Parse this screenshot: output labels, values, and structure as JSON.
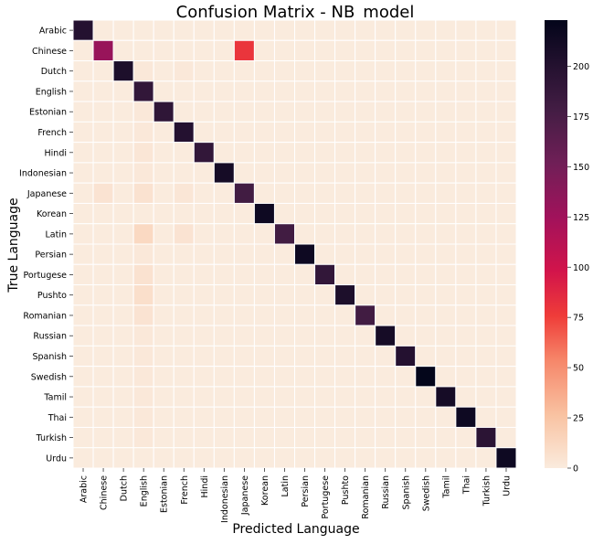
{
  "chart_data": {
    "type": "heatmap",
    "title": "Confusion Matrix - NB_model",
    "xlabel": "Predicted Language",
    "ylabel": "True Language",
    "labels": [
      "Arabic",
      "Chinese",
      "Dutch",
      "English",
      "Estonian",
      "French",
      "Hindi",
      "Indonesian",
      "Japanese",
      "Korean",
      "Latin",
      "Persian",
      "Portugese",
      "Pushto",
      "Romanian",
      "Russian",
      "Spanish",
      "Swedish",
      "Tamil",
      "Thai",
      "Turkish",
      "Urdu"
    ],
    "matrix": [
      [
        200,
        0,
        0,
        0,
        0,
        0,
        0,
        0,
        0,
        0,
        0,
        0,
        0,
        0,
        0,
        0,
        0,
        0,
        0,
        0,
        0,
        0
      ],
      [
        0,
        130,
        0,
        0,
        0,
        0,
        0,
        0,
        80,
        0,
        0,
        0,
        0,
        0,
        0,
        0,
        0,
        0,
        0,
        0,
        0,
        0
      ],
      [
        0,
        0,
        205,
        2,
        0,
        2,
        0,
        0,
        0,
        0,
        0,
        0,
        0,
        0,
        0,
        0,
        0,
        0,
        0,
        0,
        0,
        0
      ],
      [
        0,
        0,
        0,
        190,
        0,
        0,
        0,
        0,
        0,
        0,
        0,
        0,
        0,
        0,
        0,
        0,
        0,
        0,
        0,
        0,
        0,
        0
      ],
      [
        0,
        0,
        0,
        2,
        192,
        0,
        0,
        0,
        0,
        0,
        0,
        0,
        0,
        0,
        0,
        0,
        0,
        0,
        0,
        0,
        0,
        0
      ],
      [
        0,
        0,
        0,
        2,
        0,
        200,
        0,
        0,
        0,
        0,
        0,
        0,
        0,
        0,
        0,
        0,
        0,
        0,
        0,
        0,
        0,
        0
      ],
      [
        0,
        0,
        0,
        3,
        0,
        0,
        190,
        0,
        0,
        0,
        0,
        0,
        0,
        0,
        0,
        0,
        0,
        0,
        0,
        0,
        0,
        0
      ],
      [
        0,
        0,
        0,
        2,
        0,
        0,
        0,
        210,
        0,
        0,
        0,
        0,
        0,
        0,
        0,
        0,
        0,
        0,
        0,
        0,
        0,
        0
      ],
      [
        0,
        5,
        0,
        6,
        0,
        3,
        0,
        0,
        180,
        0,
        0,
        0,
        0,
        0,
        0,
        0,
        0,
        0,
        0,
        0,
        0,
        0
      ],
      [
        0,
        0,
        0,
        0,
        0,
        0,
        0,
        0,
        0,
        215,
        0,
        0,
        0,
        0,
        0,
        0,
        0,
        0,
        0,
        0,
        0,
        0
      ],
      [
        0,
        0,
        0,
        12,
        0,
        5,
        0,
        0,
        0,
        0,
        180,
        0,
        0,
        0,
        0,
        0,
        0,
        0,
        0,
        0,
        0,
        0
      ],
      [
        0,
        0,
        0,
        2,
        0,
        0,
        0,
        0,
        0,
        0,
        0,
        215,
        0,
        0,
        0,
        0,
        0,
        0,
        0,
        0,
        0,
        0
      ],
      [
        0,
        0,
        0,
        6,
        0,
        0,
        0,
        0,
        0,
        0,
        0,
        0,
        190,
        0,
        0,
        0,
        0,
        0,
        0,
        0,
        0,
        0
      ],
      [
        0,
        0,
        0,
        8,
        0,
        0,
        0,
        0,
        0,
        0,
        0,
        0,
        0,
        205,
        0,
        0,
        0,
        0,
        0,
        0,
        0,
        0
      ],
      [
        0,
        0,
        0,
        5,
        0,
        0,
        0,
        0,
        0,
        0,
        0,
        0,
        0,
        0,
        180,
        0,
        0,
        0,
        0,
        0,
        0,
        0
      ],
      [
        0,
        0,
        0,
        2,
        0,
        0,
        0,
        0,
        0,
        0,
        0,
        0,
        0,
        0,
        0,
        210,
        0,
        0,
        0,
        0,
        0,
        0
      ],
      [
        0,
        0,
        0,
        2,
        0,
        0,
        0,
        0,
        0,
        0,
        0,
        0,
        0,
        0,
        0,
        0,
        200,
        0,
        0,
        0,
        0,
        0
      ],
      [
        0,
        0,
        0,
        2,
        0,
        0,
        0,
        0,
        0,
        0,
        0,
        0,
        0,
        0,
        0,
        0,
        0,
        222,
        0,
        0,
        0,
        0
      ],
      [
        0,
        0,
        0,
        2,
        0,
        0,
        0,
        0,
        0,
        0,
        0,
        0,
        0,
        0,
        0,
        0,
        0,
        0,
        210,
        0,
        0,
        0
      ],
      [
        0,
        0,
        0,
        2,
        0,
        0,
        0,
        0,
        0,
        0,
        0,
        0,
        0,
        0,
        0,
        0,
        0,
        0,
        0,
        215,
        0,
        0
      ],
      [
        0,
        0,
        0,
        2,
        0,
        0,
        0,
        0,
        0,
        0,
        0,
        0,
        0,
        0,
        0,
        0,
        0,
        0,
        0,
        0,
        195,
        0
      ],
      [
        0,
        0,
        0,
        0,
        0,
        0,
        0,
        0,
        0,
        0,
        0,
        0,
        0,
        0,
        0,
        0,
        0,
        0,
        0,
        0,
        0,
        215
      ]
    ],
    "colorbar": {
      "min": 0,
      "max": 223,
      "ticks": [
        0,
        25,
        50,
        75,
        100,
        125,
        150,
        175,
        200
      ]
    },
    "colormap": "rocket_r",
    "grid": true
  }
}
